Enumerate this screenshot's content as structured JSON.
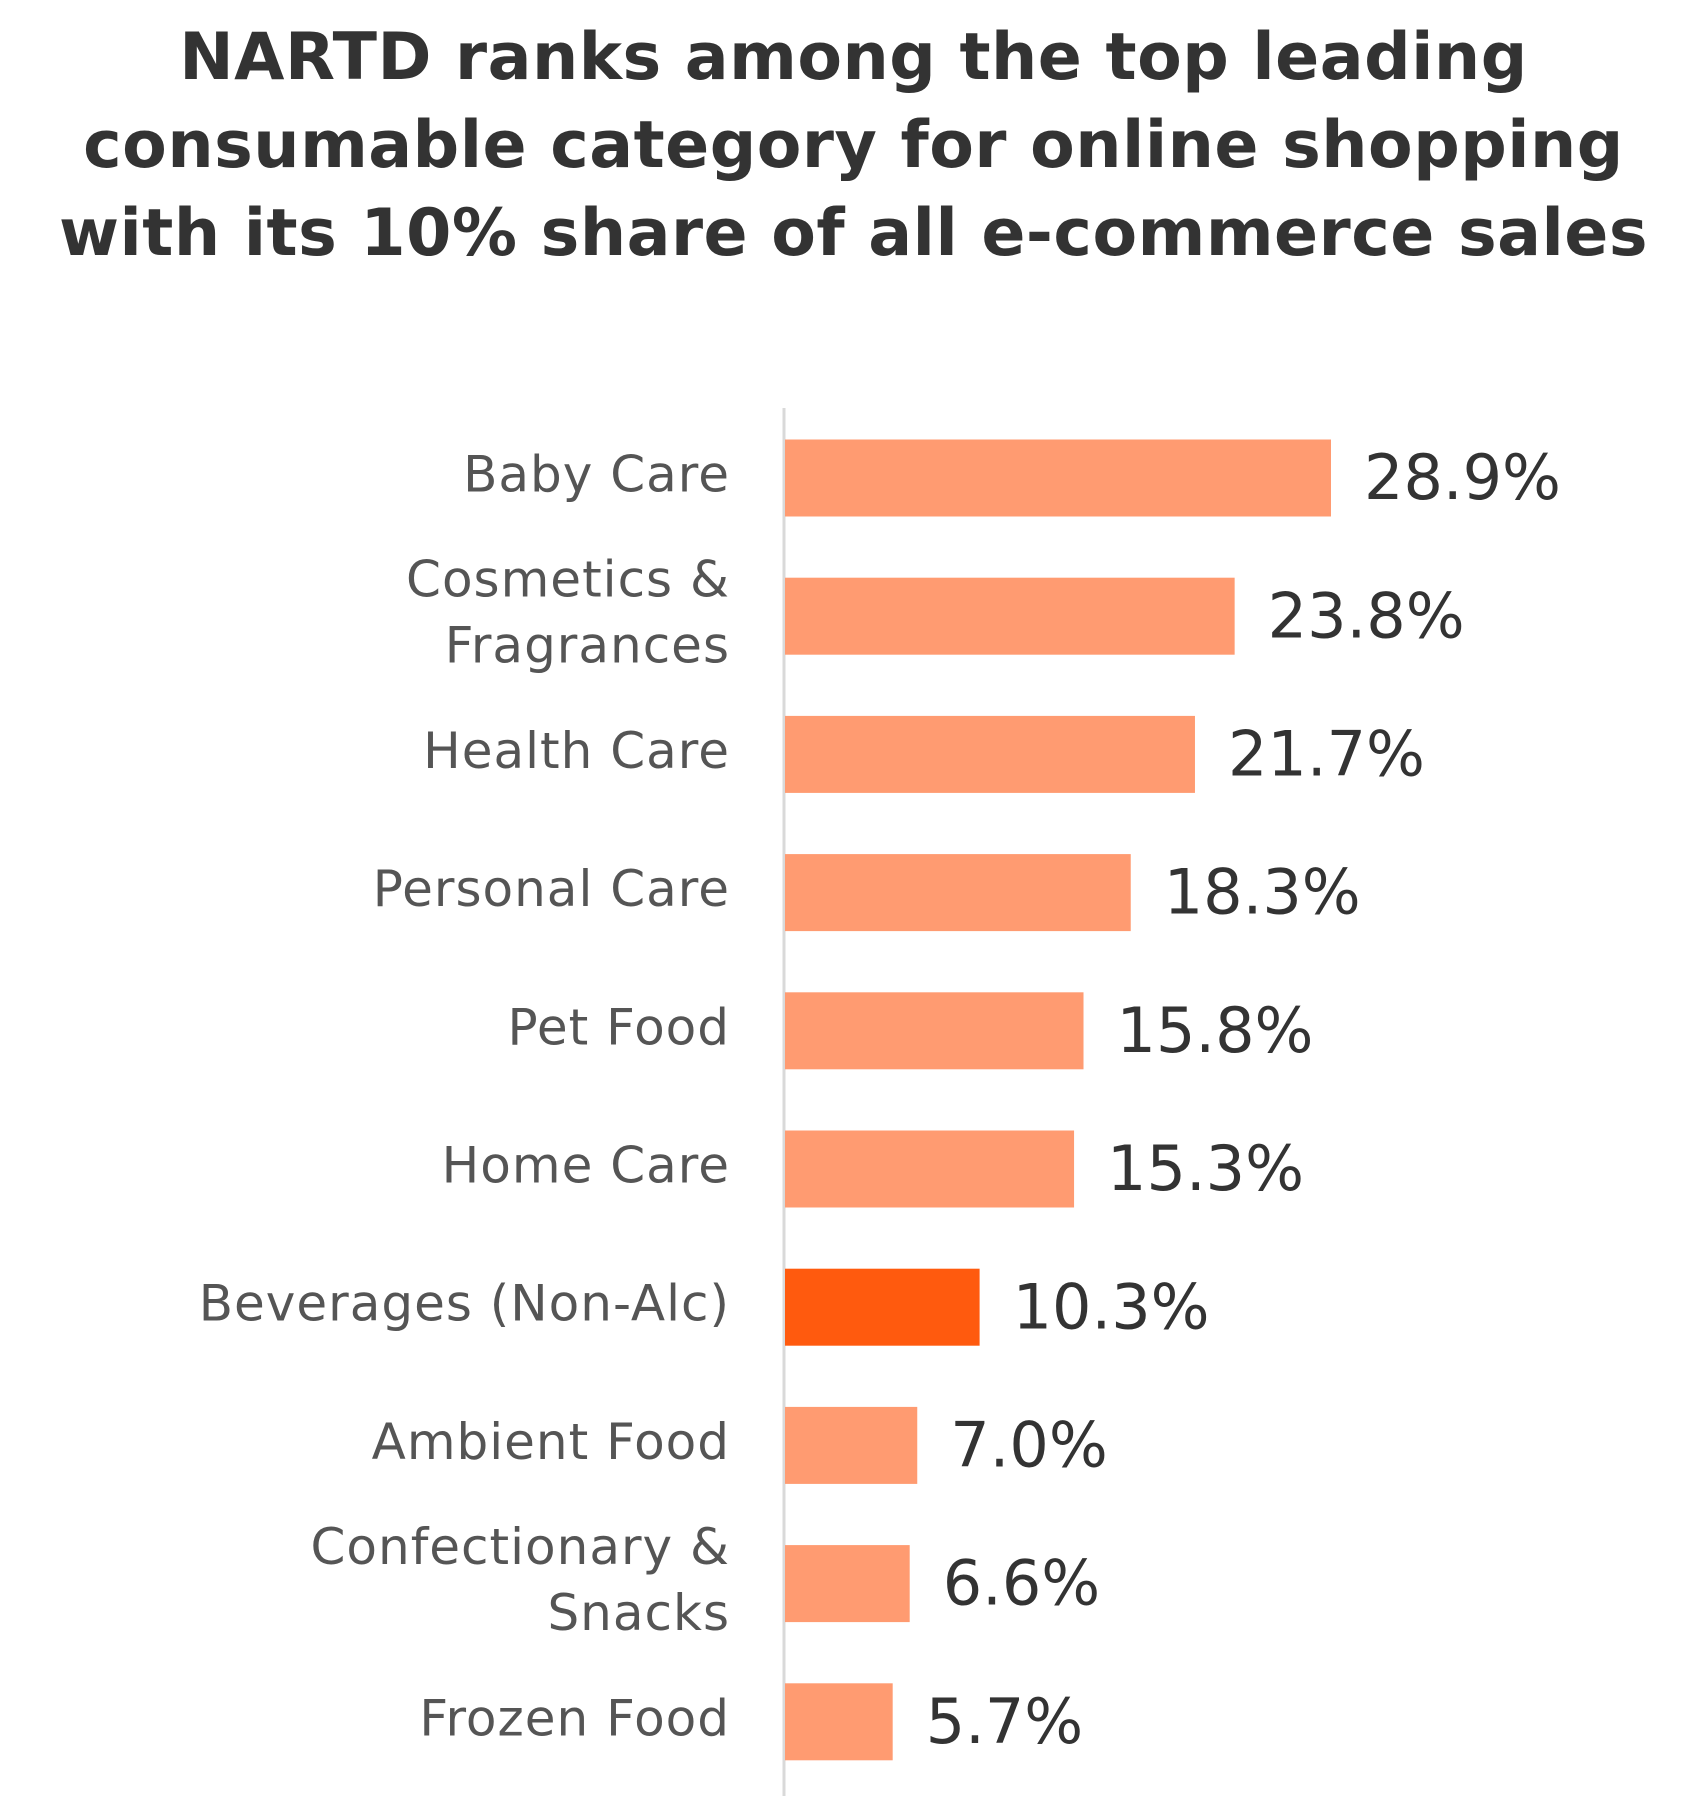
{
  "chart_data": {
    "type": "bar",
    "orientation": "horizontal",
    "title_lines": [
      "NARTD ranks among the top leading",
      "consumable category for online shopping",
      "with its 10% share of all e-commerce sales"
    ],
    "categories": [
      [
        "Baby Care"
      ],
      [
        "Cosmetics &",
        "Fragrances"
      ],
      [
        "Health Care"
      ],
      [
        "Personal Care"
      ],
      [
        "Pet Food"
      ],
      [
        "Home Care"
      ],
      [
        "Beverages (Non-Alc)"
      ],
      [
        "Ambient Food"
      ],
      [
        "Confectionary &",
        "Snacks"
      ],
      [
        "Frozen Food"
      ]
    ],
    "values": [
      28.9,
      23.8,
      21.7,
      18.3,
      15.8,
      15.3,
      10.3,
      7.0,
      6.6,
      5.7
    ],
    "value_labels": [
      "28.9%",
      "23.8%",
      "21.7%",
      "18.3%",
      "15.8%",
      "15.3%",
      "10.3%",
      "7.0%",
      "6.6%",
      "5.7%"
    ],
    "highlight_index": 6,
    "colors": {
      "bar": "#FF9B71",
      "highlight": "#FF5A0E",
      "axis": "#D9D9D9",
      "title": "#333333",
      "category_text": "#555555",
      "value_text": "#333333"
    },
    "xlim": [
      0,
      33
    ],
    "grid": false,
    "legend": "none"
  }
}
